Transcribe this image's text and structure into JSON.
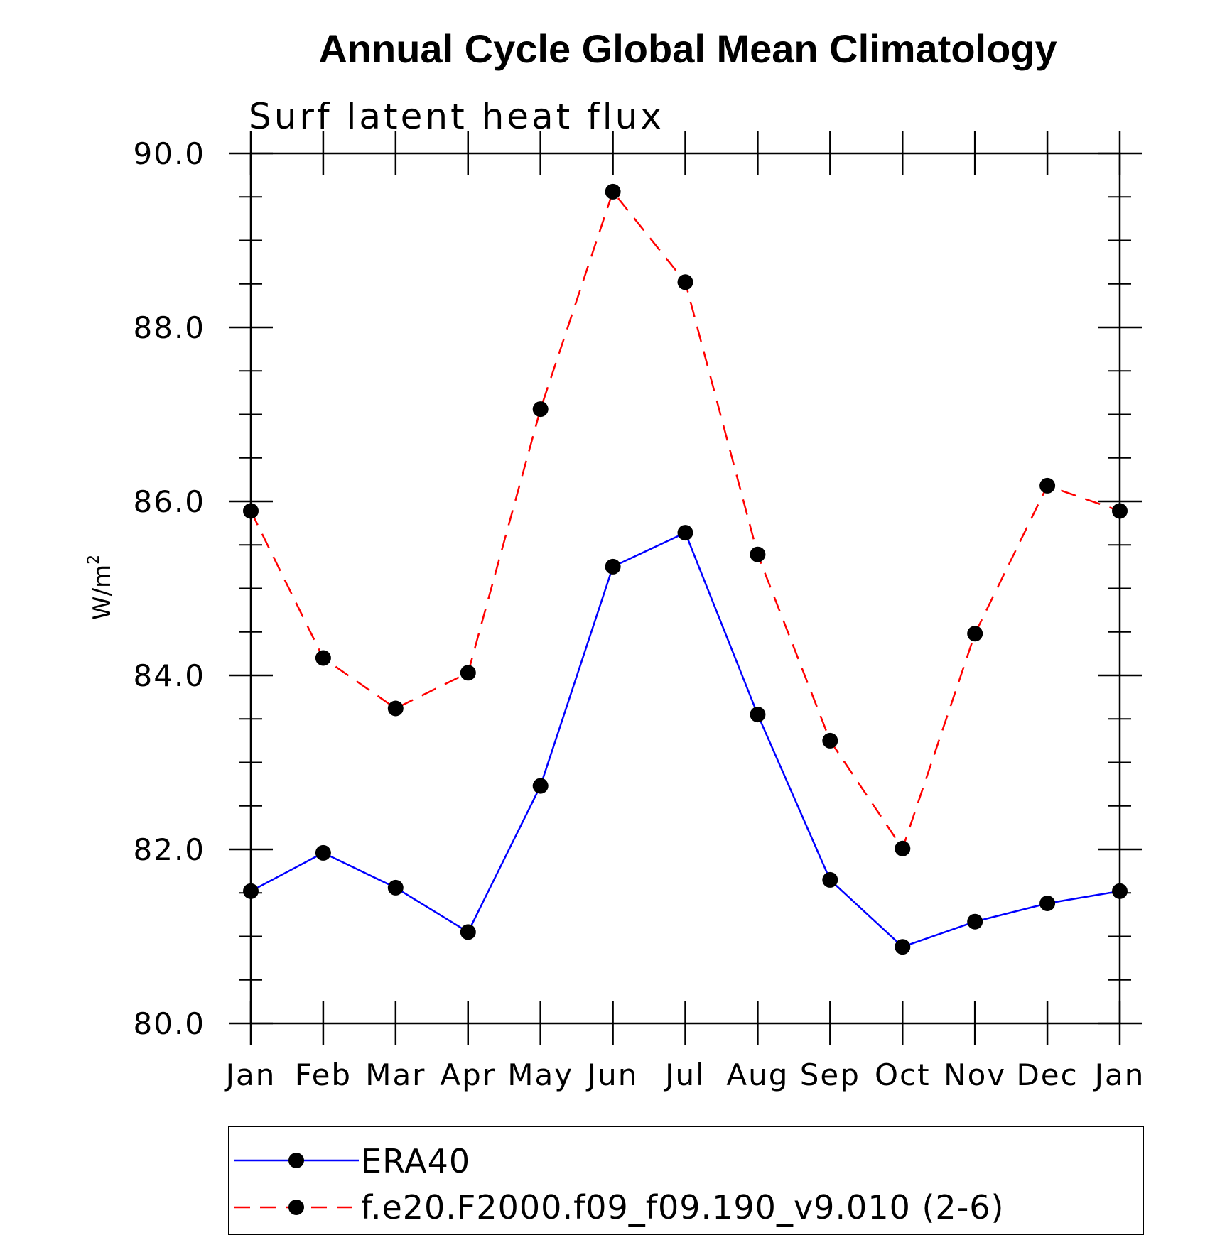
{
  "chart_data": {
    "type": "line",
    "title": "Annual Cycle Global Mean Climatology",
    "subtitle": "Surf latent heat flux",
    "ylabel": "W/m",
    "ylabel_superscript": "2",
    "ylim": [
      80,
      90
    ],
    "y_ticks": [
      "80.0",
      "82.0",
      "84.0",
      "86.0",
      "88.0",
      "90.0"
    ],
    "y_tick_values": [
      80,
      82,
      84,
      86,
      88,
      90
    ],
    "y_minor_step": 0.5,
    "categories": [
      "Jan",
      "Feb",
      "Mar",
      "Apr",
      "May",
      "Jun",
      "Jul",
      "Aug",
      "Sep",
      "Oct",
      "Nov",
      "Dec",
      "Jan"
    ],
    "grid": false,
    "legend_position": "bottom",
    "series": [
      {
        "name": "ERA40",
        "color": "#0000ff",
        "line_style": "solid",
        "marker": "filled-circle",
        "values": [
          81.52,
          81.96,
          81.56,
          81.05,
          82.73,
          85.25,
          85.64,
          83.55,
          81.65,
          80.88,
          81.17,
          81.38,
          81.52
        ]
      },
      {
        "name": "f.e20.F2000.f09_f09.190_v9.010 (2-6)",
        "color": "#ff0000",
        "line_style": "dashed",
        "marker": "filled-circle",
        "values": [
          85.89,
          84.2,
          83.62,
          84.03,
          87.06,
          89.56,
          88.52,
          85.39,
          83.25,
          82.01,
          84.48,
          86.18,
          85.89
        ]
      }
    ]
  }
}
